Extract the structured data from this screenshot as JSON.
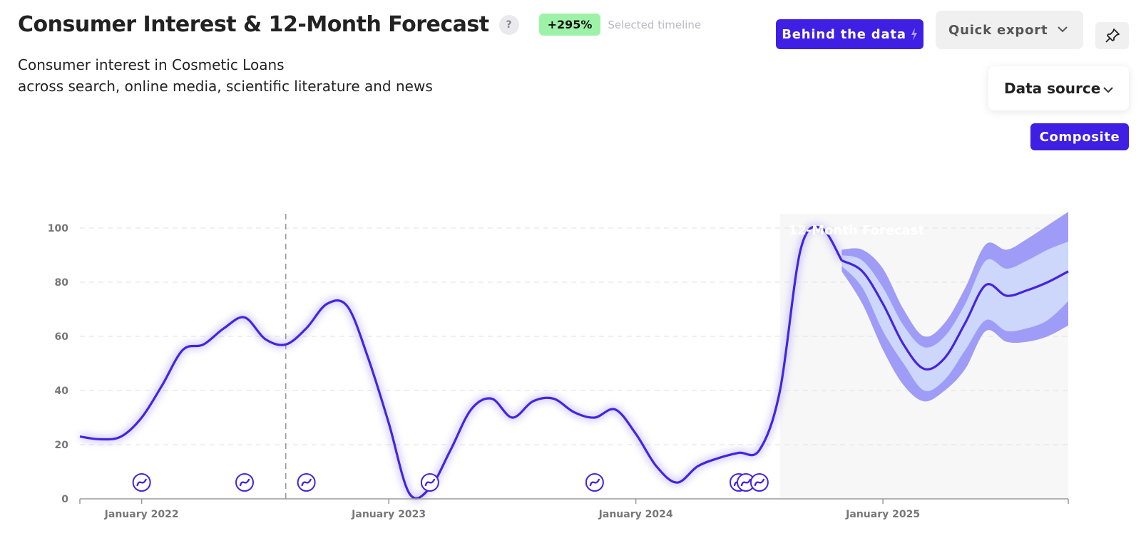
{
  "header": {
    "title": "Consumer Interest & 12-Month Forecast",
    "help_label": "?",
    "change_badge": "+295%",
    "change_note": "Selected timeline",
    "subtitle_line1": "Consumer interest in Cosmetic Loans",
    "subtitle_line2": "across search, online media, scientific literature and news"
  },
  "toolbar": {
    "behind_label": "Behind the data",
    "export_label": "Quick export",
    "pin_icon": "pin-icon"
  },
  "controls": {
    "data_source_label": "Data source",
    "composite_label": "Composite"
  },
  "colors": {
    "accent": "#3e1fe3",
    "line": "#4524e0",
    "band_outer": "#9f9cf7",
    "band_inner": "#cdd6fb",
    "forecast_bg": "#f7f7f7",
    "badge": "#9ef2a7"
  },
  "chart_data": {
    "type": "line",
    "title": "",
    "xlabel": "",
    "ylabel": "",
    "ylim": [
      0,
      100
    ],
    "yticks": [
      0,
      20,
      40,
      60,
      80,
      100
    ],
    "xticks": [
      "January 2022",
      "January 2023",
      "January 2024",
      "January 2025"
    ],
    "x_range": [
      "2021-10",
      "2025-10"
    ],
    "grid": true,
    "forecast_label": "12-Month Forecast",
    "forecast_start": "2024-08",
    "marker_line": "2022-08",
    "series": [
      {
        "points": [
          [
            "2021-10",
            23
          ],
          [
            "2021-11",
            22
          ],
          [
            "2021-12",
            23
          ],
          [
            "2022-01",
            30
          ],
          [
            "2022-02",
            42
          ],
          [
            "2022-03",
            55
          ],
          [
            "2022-04",
            57
          ],
          [
            "2022-05",
            63
          ],
          [
            "2022-06",
            67
          ],
          [
            "2022-07",
            59
          ],
          [
            "2022-08",
            57
          ],
          [
            "2022-09",
            63
          ],
          [
            "2022-10",
            72
          ],
          [
            "2022-11",
            71
          ],
          [
            "2022-12",
            52
          ],
          [
            "2023-01",
            28
          ],
          [
            "2023-02",
            2
          ],
          [
            "2023-03",
            4
          ],
          [
            "2023-04",
            18
          ],
          [
            "2023-05",
            33
          ],
          [
            "2023-06",
            37
          ],
          [
            "2023-07",
            30
          ],
          [
            "2023-08",
            36
          ],
          [
            "2023-09",
            37
          ],
          [
            "2023-10",
            32
          ],
          [
            "2023-11",
            30
          ],
          [
            "2023-12",
            33
          ],
          [
            "2024-01",
            24
          ],
          [
            "2024-02",
            12
          ],
          [
            "2024-03",
            6
          ],
          [
            "2024-04",
            12
          ],
          [
            "2024-05",
            15
          ],
          [
            "2024-06",
            17
          ],
          [
            "2024-07",
            18
          ],
          [
            "2024-08",
            40
          ],
          [
            "2024-09",
            92
          ],
          [
            "2024-10",
            100
          ],
          [
            "2024-11",
            88
          ]
        ]
      },
      {
        "forecast": true,
        "points": [
          [
            "2024-11",
            88,
            86,
            90,
            84,
            92
          ],
          [
            "2024-12",
            84,
            78,
            88,
            72,
            92
          ],
          [
            "2025-01",
            72,
            62,
            78,
            55,
            85
          ],
          [
            "2025-02",
            57,
            50,
            64,
            42,
            70
          ],
          [
            "2025-03",
            48,
            40,
            56,
            36,
            60
          ],
          [
            "2025-04",
            52,
            44,
            60,
            40,
            65
          ],
          [
            "2025-05",
            65,
            55,
            72,
            48,
            78
          ],
          [
            "2025-06",
            79,
            66,
            88,
            62,
            94
          ],
          [
            "2025-07",
            75,
            62,
            85,
            58,
            92
          ],
          [
            "2025-08",
            77,
            63,
            88,
            58,
            96
          ],
          [
            "2025-09",
            80,
            66,
            92,
            60,
            101
          ],
          [
            "2025-10",
            84,
            73,
            95,
            64,
            106
          ]
        ]
      }
    ],
    "event_markers": [
      "2022-01",
      "2022-06",
      "2022-09",
      "2023-03",
      "2023-11",
      "2024-06",
      "2024-06",
      "2024-07"
    ]
  }
}
